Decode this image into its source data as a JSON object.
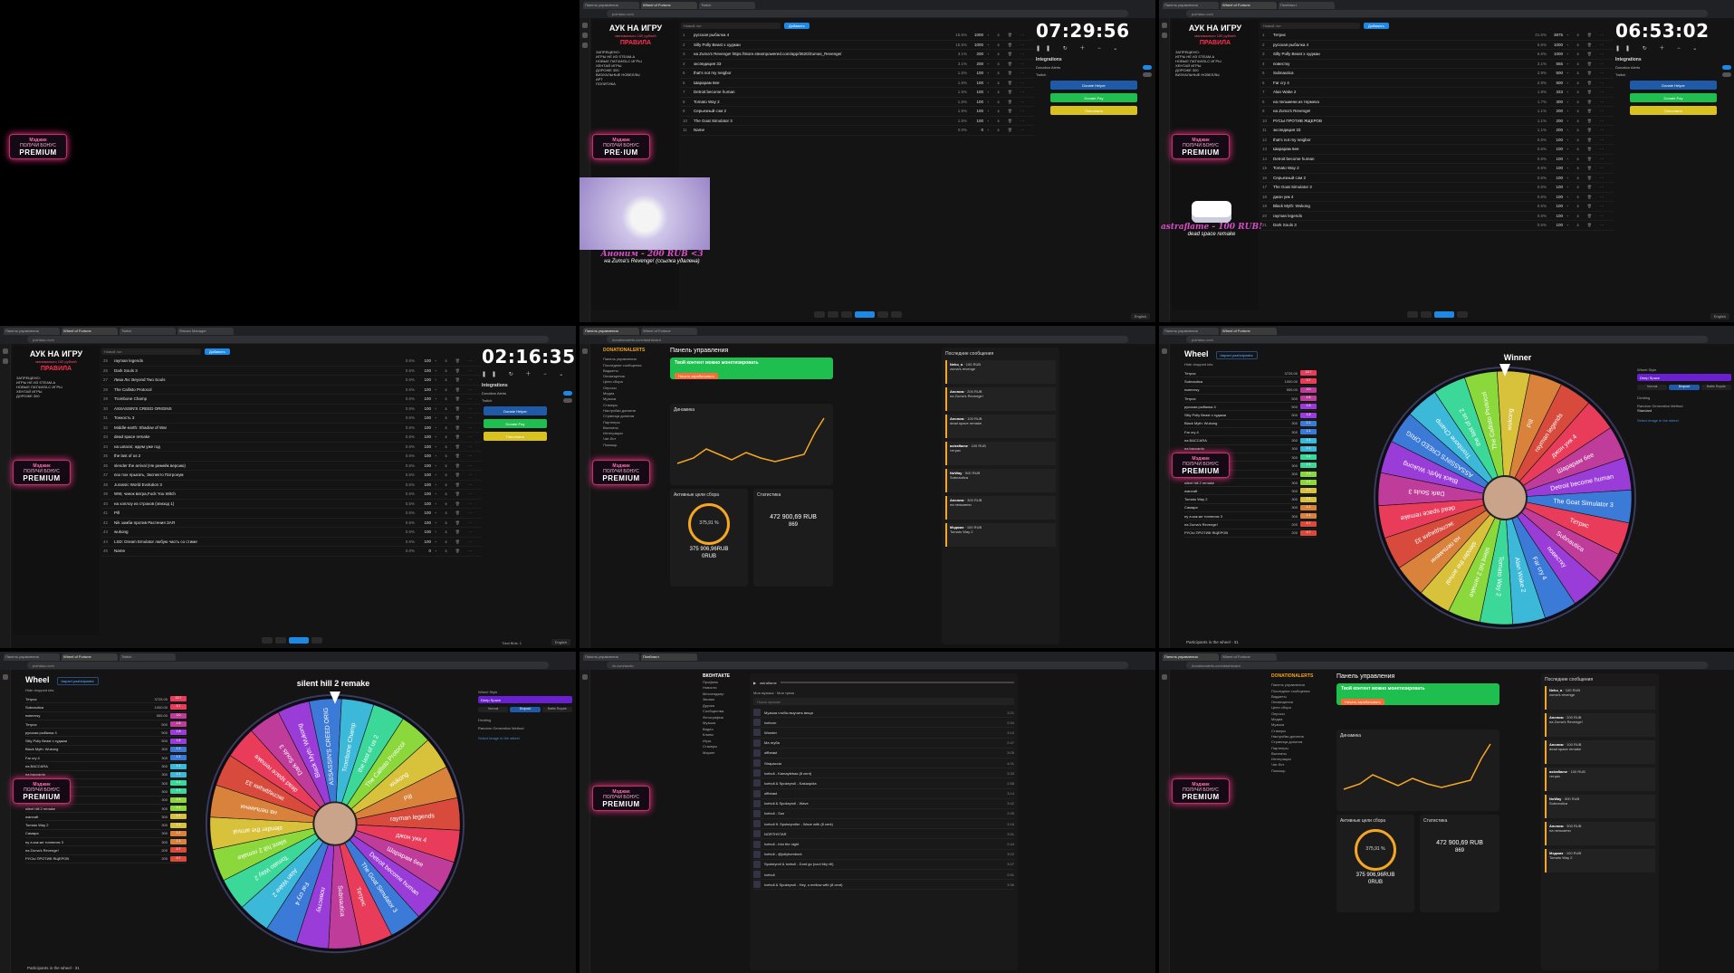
{
  "premium": {
    "line1": "Мэджик",
    "line2": "ПОЛУЧИ БОНУС",
    "badge": "PREMIUM",
    "badge_alt": "PRE·IUM"
  },
  "chrome": {
    "url_auction": "pointauc.com",
    "url_donation": "donationalerts.com/dashboard",
    "url_vk": "vk.com/audio",
    "tabs": [
      "Панель управления",
      "Wheel of Fortune",
      "Twitch",
      "Плейлист",
      "Stream Manager"
    ]
  },
  "auction": {
    "title": "АУК НА ИГРУ",
    "subtitle": "минимально 100 рублей",
    "rules": "ПРАВИЛА",
    "forbidden_label": "ЗАПРЕЩЕНО:",
    "forbidden": [
      "ИГРЫ НЕ ИЗ STEAM-А",
      "НОВЫЕ ПАТЧИ/DLC ИГРЫ",
      "ХЕНТАЙ ИГРЫ",
      "ДОРОЖЕ 300",
      "ВИЗУАЛЬНЫЕ НОВЕЛЛЫ",
      "АРТ",
      "ПОЛИТИКА"
    ],
    "search_placeholder": "Новый лот",
    "add_button": "Добавить",
    "integrations_label": "Integrations",
    "integrations": [
      "Donation Alerts",
      "Twitch"
    ],
    "donate_buttons": [
      {
        "label": "Donate Helper",
        "color": "#1e5aa8"
      },
      {
        "label": "Donate Pay",
        "color": "#1fbf4f"
      },
      {
        "label": "Пополнить",
        "color": "#d8c21f"
      }
    ],
    "total_bids": "Total Bids: 1",
    "language": "English"
  },
  "tile2": {
    "timer": "07:29:56",
    "lots": [
      {
        "n": "1",
        "name": "русская рыбалка 4",
        "pct": "15.5%",
        "amount": "1000"
      },
      {
        "n": "2",
        "name": "Silly Polly Beast x худжаи",
        "pct": "15.5%",
        "amount": "1000"
      },
      {
        "n": "3",
        "name": "на Zuma's Revenge! https://store.steampowered.com/app/3620/Zumas_Revenge/",
        "pct": "3.1%",
        "amount": "200"
      },
      {
        "n": "4",
        "name": "экспедиция 33",
        "pct": "3.1%",
        "amount": "200"
      },
      {
        "n": "5",
        "name": "that's not my neigbor",
        "pct": "1.5%",
        "amount": "100"
      },
      {
        "n": "6",
        "name": "Шарарам 6ee",
        "pct": "1.5%",
        "amount": "100"
      },
      {
        "n": "7",
        "name": "Detroit become human",
        "pct": "1.5%",
        "amount": "100"
      },
      {
        "n": "8",
        "name": "Tomato Way 2",
        "pct": "1.5%",
        "amount": "100"
      },
      {
        "n": "9",
        "name": "Серьезный сэм 2",
        "pct": "1.5%",
        "amount": "100"
      },
      {
        "n": "10",
        "name": "The Goat Simulator 3",
        "pct": "1.5%",
        "amount": "100"
      },
      {
        "n": "11",
        "name": "Name",
        "pct": "0.0%",
        "amount": "0"
      }
    ],
    "donation_who": "Аноним - 200 RUB <3",
    "donation_text": "на Zuma's Revenge! (ссылка удалена)"
  },
  "tile3": {
    "timer": "06:53:02",
    "lots": [
      {
        "n": "1",
        "name": "Тетрис",
        "pct": "21.6%",
        "amount": "3875"
      },
      {
        "n": "2",
        "name": "русская рыбалка 4",
        "pct": "5.6%",
        "amount": "1000"
      },
      {
        "n": "3",
        "name": "Silly Polly Beast x худжаи",
        "pct": "5.6%",
        "amount": "1000"
      },
      {
        "n": "4",
        "name": "повестку",
        "pct": "3.1%",
        "amount": "555"
      },
      {
        "n": "5",
        "name": "Subnautica",
        "pct": "2.8%",
        "amount": "500"
      },
      {
        "n": "6",
        "name": "Far cry 4",
        "pct": "2.8%",
        "amount": "500"
      },
      {
        "n": "7",
        "name": "Alan Wake 2",
        "pct": "1.9%",
        "amount": "333"
      },
      {
        "n": "8",
        "name": "на пельмени из термеха",
        "pct": "1.7%",
        "amount": "300"
      },
      {
        "n": "9",
        "name": "на Zuma's Revenge!",
        "pct": "1.1%",
        "amount": "200"
      },
      {
        "n": "10",
        "name": "РУСЫ ПРОТИВ ЯЩЕРОВ",
        "pct": "1.1%",
        "amount": "200"
      },
      {
        "n": "11",
        "name": "экспедиция 33",
        "pct": "1.1%",
        "amount": "200"
      },
      {
        "n": "12",
        "name": "that's not my neigbor",
        "pct": "0.6%",
        "amount": "100"
      },
      {
        "n": "13",
        "name": "Шарарам 6ee",
        "pct": "0.6%",
        "amount": "100"
      },
      {
        "n": "14",
        "name": "Detroit become human",
        "pct": "0.6%",
        "amount": "100"
      },
      {
        "n": "15",
        "name": "Tomato Way 2",
        "pct": "0.6%",
        "amount": "100"
      },
      {
        "n": "16",
        "name": "Серьезный сэм 2",
        "pct": "0.6%",
        "amount": "100"
      },
      {
        "n": "17",
        "name": "The Goat Simulator 3",
        "pct": "0.6%",
        "amount": "100"
      },
      {
        "n": "18",
        "name": "джон уик 4",
        "pct": "0.6%",
        "amount": "100"
      },
      {
        "n": "19",
        "name": "Black Myth: Wukong",
        "pct": "0.6%",
        "amount": "100"
      },
      {
        "n": "20",
        "name": "rayman legends",
        "pct": "0.6%",
        "amount": "100"
      },
      {
        "n": "21",
        "name": "Dark Souls 3",
        "pct": "0.6%",
        "amount": "100"
      }
    ],
    "donation_who": "astraflame - 100 RUB!",
    "donation_text": "dead space remake"
  },
  "tile4": {
    "timer": "02:16:35",
    "lots": [
      {
        "n": "25",
        "name": "rayman legends",
        "pct": "0.6%",
        "amount": "100"
      },
      {
        "n": "26",
        "name": "Dark Souls 3",
        "pct": "0.6%",
        "amount": "100"
      },
      {
        "n": "27",
        "name": "Лиза Ли: Beyond Two Souls",
        "pct": "0.6%",
        "amount": "100"
      },
      {
        "n": "28",
        "name": "The Callisto Protocol",
        "pct": "0.6%",
        "amount": "100"
      },
      {
        "n": "29",
        "name": "Trombone Champ",
        "pct": "0.6%",
        "amount": "100"
      },
      {
        "n": "30",
        "name": "ASSASSIN'S CREED ORIGINS",
        "pct": "0.6%",
        "amount": "100"
      },
      {
        "n": "31",
        "name": "Тонкость 3",
        "pct": "0.6%",
        "amount": "100"
      },
      {
        "n": "32",
        "name": "Middle-earth: Shadow of War",
        "pct": "0.6%",
        "amount": "100"
      },
      {
        "n": "33",
        "name": "dead space remake",
        "pct": "0.6%",
        "amount": "100"
      },
      {
        "n": "34",
        "name": "на шпагат, ждем уже год",
        "pct": "0.6%",
        "amount": "100"
      },
      {
        "n": "35",
        "name": "the last of us 2",
        "pct": "0.6%",
        "amount": "100"
      },
      {
        "n": "36",
        "name": "slender the arrival (Не ремейк версию)",
        "pct": "0.6%",
        "amount": "100"
      },
      {
        "n": "37",
        "name": "пох пох прыгать, Экспекто Патронум",
        "pct": "0.6%",
        "amount": "100"
      },
      {
        "n": "38",
        "name": "Jurassic World Evolution 3",
        "pct": "0.6%",
        "amount": "100"
      },
      {
        "n": "39",
        "name": "WW, чинок ватра,Fuck You Witch",
        "pct": "0.6%",
        "amount": "100"
      },
      {
        "n": "40",
        "name": "на хэллоу из строков (эпизод 1)",
        "pct": "0.6%",
        "amount": "100"
      },
      {
        "n": "41",
        "name": "Pill",
        "pct": "0.6%",
        "amount": "100"
      },
      {
        "n": "42",
        "name": "Nik зомби против Растения ЗАЯ",
        "pct": "0.6%",
        "amount": "100"
      },
      {
        "n": "43",
        "name": "wukong",
        "pct": "0.6%",
        "amount": "100"
      },
      {
        "n": "44",
        "name": "LSD: Dream Emulator любую часть со стиме",
        "pct": "0.6%",
        "amount": "100"
      },
      {
        "n": "45",
        "name": "Name",
        "pct": "0.0%",
        "amount": "0"
      }
    ]
  },
  "dashboard": {
    "brand": "DONATIONALERTS",
    "title": "Панель управления",
    "banner_text": "Твой контент можно монетизировать",
    "banner_button": "Начать зарабатывать",
    "dynamics": "Динамика",
    "goals": "Активные цели сбора",
    "stats": "Статистика",
    "messages": "Последние сообщения",
    "goal_pct": "375,91 %",
    "goal_amount": "375 906,96RUB",
    "goal_zero": "0RUB",
    "stats_sum": "472 900,69 RUB",
    "stats_count": "869",
    "nav": [
      "Панель управления",
      "Последние сообщения",
      "Виджеты",
      "Оповещения",
      "Цели сбора",
      "Опросы",
      "Медиа",
      "Музыка",
      "Стикеры",
      "Настройки донатов",
      "Страница донатов",
      "Партнеры",
      "Выплаты",
      "Интеграции",
      "Чат-бот",
      "Помощь"
    ],
    "msgs": [
      {
        "who": "Neko_a",
        "amount": "100 RUB",
        "text": "zuma's revenge"
      },
      {
        "who": "Аноним",
        "amount": "200 RUB",
        "text": "на Zuma's Revenge!"
      },
      {
        "who": "Аноним",
        "amount": "100 RUB",
        "text": "dead space remake"
      },
      {
        "who": "astraflame",
        "amount": "100 RUB",
        "text": "тетрис"
      },
      {
        "who": "NoWay",
        "amount": "500 RUB",
        "text": "Subnautica"
      },
      {
        "who": "Аноним",
        "amount": "300 RUB",
        "text": "на пельмени"
      },
      {
        "who": "Мэджик",
        "amount": "100 RUB",
        "text": "Tomato Way 2"
      }
    ]
  },
  "wheel": {
    "title": "Wheel",
    "import_button": "Import participants",
    "hide_label": "Hide dropped lots",
    "winner_label": "Winner",
    "winner_value": "silent hill 2 remake",
    "participants": "Participants in the wheel - 31",
    "style_label": "Wheel Style",
    "style_value": "Deep Space",
    "modes": [
      "Normal",
      "Dropout",
      "Battle Royale"
    ],
    "dividing": "Dividing",
    "rng": "Random Generation Method",
    "rng_value": "Standard",
    "select_image": "Select image in the wheel",
    "entries": [
      {
        "name": "Тетрис",
        "amount": "3725.00",
        "pct": "13.7",
        "color": "#e83c5a"
      },
      {
        "name": "Subnautica",
        "amount": "1000.00",
        "pct": "3.7",
        "color": "#e83c5a"
      },
      {
        "name": "повестку",
        "amount": "555.00",
        "pct": "2.0",
        "color": "#c03c9a"
      },
      {
        "name": "Тетрис",
        "amount": "500",
        "pct": "1.8",
        "color": "#c03c9a"
      },
      {
        "name": "русская рыбалка 4",
        "amount": "500",
        "pct": "1.8",
        "color": "#9a3cd8"
      },
      {
        "name": "Silly Polly Beast x худжаи",
        "amount": "500",
        "pct": "1.8",
        "color": "#9a3cd8"
      },
      {
        "name": "Black Myth: Wukong",
        "amount": "300",
        "pct": "1.1",
        "color": "#3c7ad8"
      },
      {
        "name": "Far cry 4",
        "amount": "300",
        "pct": "1.1",
        "color": "#3c7ad8"
      },
      {
        "name": "на BACCARA",
        "amount": "300",
        "pct": "1.1",
        "color": "#3cb8d8"
      },
      {
        "name": "на baccardo",
        "amount": "300",
        "pct": "1.1",
        "color": "#3cb8d8"
      },
      {
        "name": "Alan Wake 2",
        "amount": "300",
        "pct": "1.1",
        "color": "#3cd89a"
      },
      {
        "name": "Шарарам 6ee",
        "amount": "300",
        "pct": "1.1",
        "color": "#3cd89a"
      },
      {
        "name": "на пельмени из термеха",
        "amount": "300",
        "pct": "1.1",
        "color": "#8ad83c"
      },
      {
        "name": "silent hill 2 remake",
        "amount": "300",
        "pct": "1.1",
        "color": "#8ad83c"
      },
      {
        "name": "warcraft",
        "amount": "300",
        "pct": "1.1",
        "color": "#d8c23c"
      },
      {
        "name": "Tomato Way 2",
        "amount": "300",
        "pct": "1.1",
        "color": "#d8c23c"
      },
      {
        "name": "Самара",
        "amount": "300",
        "pct": "1.1",
        "color": "#d8823c"
      },
      {
        "name": "ну а как же тоннелях 3",
        "amount": "300",
        "pct": "1.1",
        "color": "#d8823c"
      },
      {
        "name": "на Zuma's Revenge!",
        "amount": "200",
        "pct": "0.7",
        "color": "#d84a3c"
      },
      {
        "name": "РУСЫ ПРОТИВ ЯЩЕРОВ",
        "amount": "200",
        "pct": "0.7",
        "color": "#d84a3c"
      }
    ],
    "slice_labels": [
      "Тетрис",
      "Subnautica",
      "повестку",
      "Far cry 4",
      "Alan Wake 2",
      "Tomato Way 2",
      "silent hill 2 remake",
      "slender the arrival",
      "на пельмени",
      "экспедиция 33",
      "dead space remake",
      "Dark Souls 3",
      "Black Myth: Wukong",
      "ASSASSIN'S CREED ORIG",
      "Trombone Champ",
      "the last of us 2",
      "The Callisto Protocol",
      "wukong",
      "Pill",
      "rayman legends",
      "джон уик 4",
      "Шарарам 6ee",
      "Detroit become human",
      "The Goat Simulator 3"
    ]
  },
  "vk": {
    "brand": "ВКОНТАКТЕ",
    "nav": [
      "Профиль",
      "Новости",
      "Мессенджер",
      "Звонки",
      "Друзья",
      "Сообщества",
      "Фотографии",
      "Музыка",
      "Видео",
      "Клипы",
      "Игры",
      "Стикеры",
      "Маркет"
    ],
    "now_playing": "astraflame",
    "tabs": "Моя музыка · Мои треки",
    "search_placeholder": "Поиск музыки",
    "tracks": [
      {
        "title": "Музыка чтобы выучить вещи",
        "dur": "3:21"
      },
      {
        "title": "Iceburn",
        "dur": "2:54"
      },
      {
        "title": "Wonder",
        "dur": "3:10"
      },
      {
        "title": "Ма нгуба",
        "dur": "2:47"
      },
      {
        "title": "offbeast",
        "dur": "3:05"
      },
      {
        "title": "Strapaccia",
        "dur": "4:01"
      },
      {
        "title": "Icebull - Kamaytebas (8 cent)",
        "dur": "3:33"
      },
      {
        "title": "Icebull & Spokeyroll - Kakaupida",
        "dur": "2:58"
      },
      {
        "title": "offbeast",
        "dur": "3:14"
      },
      {
        "title": "Icebull & Spokeyroll - Wave",
        "dur": "3:42"
      },
      {
        "title": "Icebull - Sun",
        "dur": "2:39"
      },
      {
        "title": "Icebull ft. Spokeyroller - Wave with (8 cent)",
        "dur": "3:18"
      },
      {
        "title": "NORTHSTAR",
        "dur": "3:51"
      },
      {
        "title": "Icebull - Into the night",
        "dur": "2:44"
      },
      {
        "title": "Icebull - @jollybomburk",
        "dur": "3:02"
      },
      {
        "title": "Spokeyroll & Icebull - Dont go (cool bby rill)",
        "dur": "3:27"
      },
      {
        "title": "Icebull",
        "dur": "2:51"
      },
      {
        "title": "Icebull & Spokeyroll - Hey, u mellow with (8 cent)",
        "dur": "3:36"
      }
    ]
  }
}
